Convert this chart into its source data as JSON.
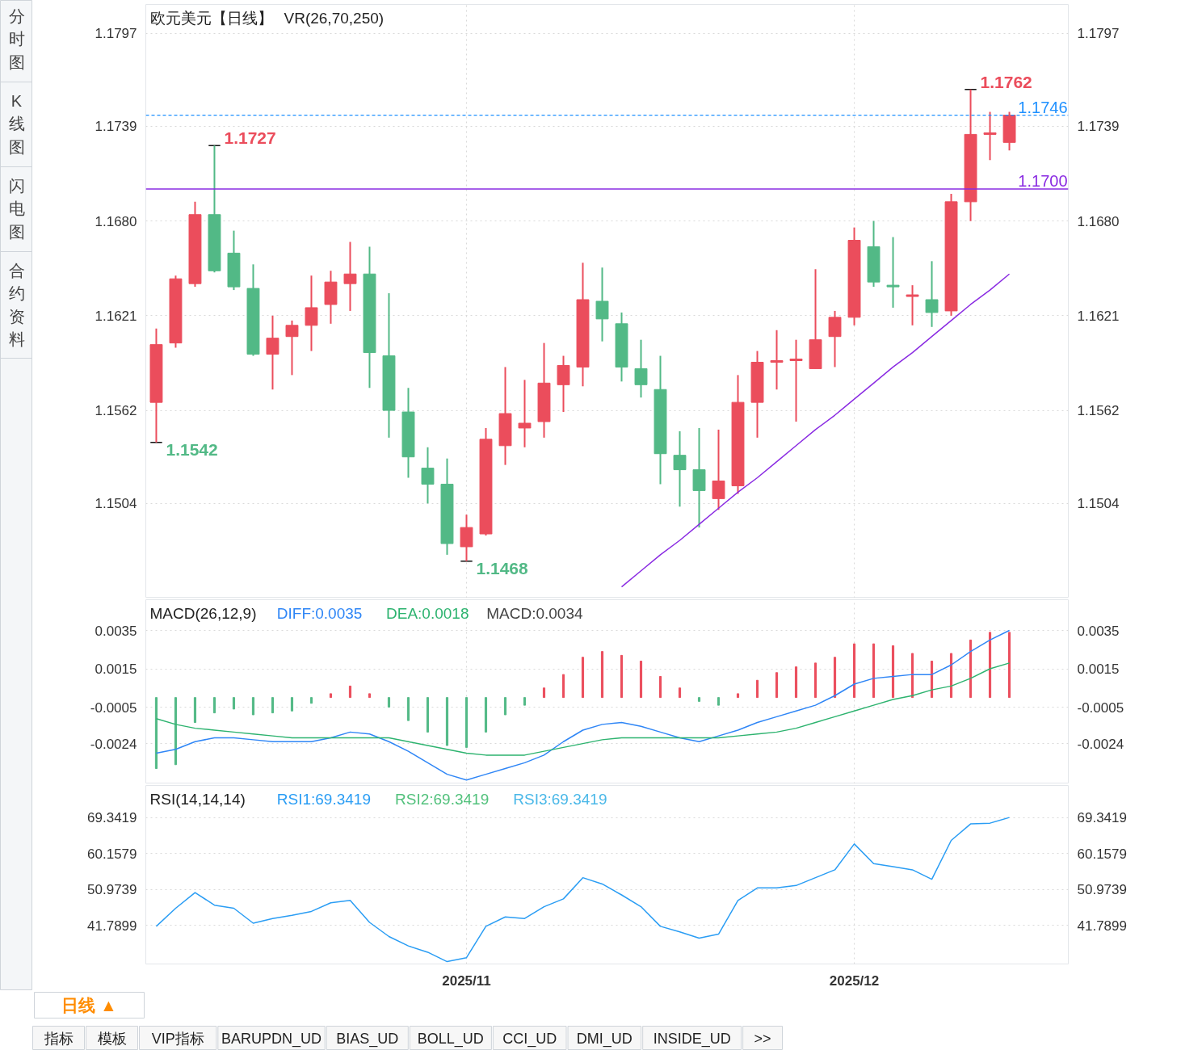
{
  "chart_data": [
    {
      "type": "candlestick",
      "title": "欧元美元【日线】",
      "subtitle": "VR(26,70,250)",
      "categories": [
        null,
        null,
        null,
        null,
        null,
        null,
        null,
        null,
        null,
        null,
        null,
        null,
        null,
        null,
        null,
        null,
        "2025/11",
        null,
        null,
        null,
        null,
        null,
        null,
        null,
        null,
        null,
        null,
        null,
        null,
        null,
        null,
        null,
        null,
        null,
        null,
        null,
        "2025/12",
        null,
        null,
        null,
        null,
        null,
        null,
        null,
        null
      ],
      "ohlc": [
        [
          1.1567,
          1.1613,
          1.1542,
          1.1603
        ],
        [
          1.1604,
          1.1646,
          1.1601,
          1.1644
        ],
        [
          1.1641,
          1.1692,
          1.1639,
          1.1684
        ],
        [
          1.1684,
          1.1727,
          1.1648,
          1.1649
        ],
        [
          1.166,
          1.1674,
          1.1637,
          1.1639
        ],
        [
          1.1638,
          1.1653,
          1.1596,
          1.1597
        ],
        [
          1.1597,
          1.1621,
          1.1575,
          1.1607
        ],
        [
          1.1608,
          1.1618,
          1.1584,
          1.1615
        ],
        [
          1.1615,
          1.1646,
          1.1599,
          1.1626
        ],
        [
          1.1628,
          1.1649,
          1.1616,
          1.1642
        ],
        [
          1.1641,
          1.1667,
          1.1624,
          1.1647
        ],
        [
          1.1647,
          1.1664,
          1.1576,
          1.1598
        ],
        [
          1.1596,
          1.1635,
          1.1545,
          1.1562
        ],
        [
          1.1561,
          1.1576,
          1.152,
          1.1533
        ],
        [
          1.1526,
          1.1539,
          1.1504,
          1.1516
        ],
        [
          1.1516,
          1.1532,
          1.1472,
          1.1479
        ],
        [
          1.1477,
          1.1497,
          1.1468,
          1.1489
        ],
        [
          1.1485,
          1.1551,
          1.1484,
          1.1544
        ],
        [
          1.154,
          1.1589,
          1.1528,
          1.156
        ],
        [
          1.1551,
          1.1581,
          1.1539,
          1.1554
        ],
        [
          1.1555,
          1.1604,
          1.1545,
          1.1579
        ],
        [
          1.1578,
          1.1596,
          1.1561,
          1.159
        ],
        [
          1.1589,
          1.1654,
          1.1577,
          1.1631
        ],
        [
          1.163,
          1.1651,
          1.1605,
          1.1619
        ],
        [
          1.1616,
          1.1623,
          1.158,
          1.1589
        ],
        [
          1.1588,
          1.1606,
          1.157,
          1.1578
        ],
        [
          1.1575,
          1.1596,
          1.1516,
          1.1535
        ],
        [
          1.1534,
          1.1549,
          1.1502,
          1.1525
        ],
        [
          1.1525,
          1.1551,
          1.1489,
          1.1512
        ],
        [
          1.1507,
          1.155,
          1.15,
          1.1518
        ],
        [
          1.1515,
          1.1584,
          1.151,
          1.1567
        ],
        [
          1.1567,
          1.1599,
          1.1545,
          1.1592
        ],
        [
          1.1592,
          1.1612,
          1.1575,
          1.1593
        ],
        [
          1.1593,
          1.1606,
          1.1555,
          1.1594
        ],
        [
          1.1588,
          1.165,
          1.1588,
          1.1606
        ],
        [
          1.1608,
          1.1624,
          1.1589,
          1.162
        ],
        [
          1.162,
          1.1676,
          1.1615,
          1.1668
        ],
        [
          1.1664,
          1.168,
          1.1639,
          1.1642
        ],
        [
          1.164,
          1.167,
          1.1626,
          1.1639
        ],
        [
          1.1633,
          1.164,
          1.1615,
          1.1634
        ],
        [
          1.1631,
          1.1655,
          1.1614,
          1.1623
        ],
        [
          1.1624,
          1.1697,
          1.1621,
          1.1692
        ],
        [
          1.1692,
          1.1762,
          1.168,
          1.1734
        ],
        [
          1.1734,
          1.1748,
          1.1718,
          1.1735
        ],
        [
          1.1729,
          1.1748,
          1.1724,
          1.1746
        ]
      ],
      "colors": [
        "#eb4d5c",
        "#eb4d5c",
        "#eb4d5c",
        "#52b986",
        "#52b986",
        "#52b986",
        "#eb4d5c",
        "#eb4d5c",
        "#eb4d5c",
        "#eb4d5c",
        "#eb4d5c",
        "#52b986",
        "#52b986",
        "#52b986",
        "#52b986",
        "#52b986",
        "#eb4d5c",
        "#eb4d5c",
        "#eb4d5c",
        "#eb4d5c",
        "#eb4d5c",
        "#eb4d5c",
        "#eb4d5c",
        "#52b986",
        "#52b986",
        "#52b986",
        "#52b986",
        "#52b986",
        "#52b986",
        "#eb4d5c",
        "#eb4d5c",
        "#eb4d5c",
        "#eb4d5c",
        "#eb4d5c",
        "#eb4d5c",
        "#eb4d5c",
        "#eb4d5c",
        "#52b986",
        "#52b986",
        "#eb4d5c",
        "#52b986",
        "#eb4d5c",
        "#eb4d5c",
        "#eb4d5c",
        "#eb4d5c"
      ],
      "series": [
        {
          "type": "line",
          "color": "#8a2be2",
          "values": [
            null,
            null,
            null,
            null,
            null,
            null,
            null,
            null,
            null,
            null,
            null,
            null,
            null,
            null,
            null,
            null,
            null,
            null,
            null,
            null,
            null,
            null,
            null,
            null,
            1.1452,
            1.1462,
            1.1472,
            1.1481,
            1.1491,
            1.1501,
            1.1511,
            1.152,
            1.153,
            1.154,
            1.155,
            1.1559,
            1.1569,
            1.1579,
            1.1589,
            1.1598,
            1.1608,
            1.1618,
            1.1628,
            1.1637,
            1.1647
          ]
        }
      ],
      "ylim": [
        1.1445,
        1.1815
      ],
      "yticks": [
        1.1797,
        1.1739,
        {
          "value": 1.168,
          "label": "1.1680"
        },
        1.1621,
        1.1562,
        1.1504
      ],
      "y2lim": [
        1.1445,
        1.1815
      ],
      "y2ticks": [
        1.1797,
        1.1739,
        {
          "value": 1.168,
          "label": "1.1680"
        },
        1.1621,
        1.1562,
        1.1504
      ],
      "ref_lines": [
        {
          "axis": "y",
          "value": 1.17,
          "label": "1.1700",
          "color": "#8a2be2",
          "line_style": "solid"
        },
        {
          "axis": "y",
          "value": 1.1746,
          "label": "1.1746",
          "color": "#1e90ff",
          "line_style": "dashed"
        }
      ],
      "annotations": [
        "1.1727",
        "1.1542",
        "1.1468",
        "1.1762"
      ],
      "grid": true,
      "tick_labels": "y"
    },
    {
      "type": "line",
      "title": "MACD(26,12,9)",
      "categories": [
        null,
        null,
        null,
        null,
        null,
        null,
        null,
        null,
        null,
        null,
        null,
        null,
        null,
        null,
        null,
        null,
        "2025/11",
        null,
        null,
        null,
        null,
        null,
        null,
        null,
        null,
        null,
        null,
        null,
        null,
        null,
        null,
        null,
        null,
        null,
        null,
        null,
        "2025/12",
        null,
        null,
        null,
        null,
        null,
        null,
        null,
        null
      ],
      "series": [
        {
          "name": "DIFF:0.0035",
          "color": "#2f86f6",
          "values": [
            -0.0029,
            -0.0027,
            -0.0023,
            -0.0021,
            -0.0021,
            -0.0022,
            -0.0023,
            -0.0023,
            -0.0023,
            -0.0021,
            -0.0018,
            -0.0019,
            -0.0023,
            -0.0028,
            -0.0034,
            -0.004,
            -0.0043,
            -0.004,
            -0.0037,
            -0.0034,
            -0.003,
            -0.0023,
            -0.0017,
            -0.0014,
            -0.0013,
            -0.0015,
            -0.0018,
            -0.0021,
            -0.0023,
            -0.002,
            -0.0017,
            -0.0013,
            -0.001,
            -0.0007,
            -0.0004,
            0.0001,
            0.0007,
            0.001,
            0.0011,
            0.0012,
            0.0012,
            0.0017,
            0.0024,
            0.003,
            0.0035
          ]
        },
        {
          "name": "DEA:0.0018",
          "color": "#2db36f",
          "values": [
            -0.0011,
            -0.0014,
            -0.0016,
            -0.0017,
            -0.0018,
            -0.0019,
            -0.002,
            -0.0021,
            -0.0021,
            -0.0021,
            -0.0021,
            -0.0021,
            -0.0021,
            -0.0023,
            -0.0025,
            -0.0027,
            -0.0029,
            -0.003,
            -0.003,
            -0.003,
            -0.0028,
            -0.0026,
            -0.0024,
            -0.0022,
            -0.0021,
            -0.0021,
            -0.0021,
            -0.0021,
            -0.0021,
            -0.0021,
            -0.002,
            -0.0019,
            -0.0018,
            -0.0016,
            -0.0013,
            -0.001,
            -0.0007,
            -0.0004,
            -0.0001,
            0.0001,
            0.0004,
            0.0006,
            0.001,
            0.0015,
            0.0018
          ]
        },
        {
          "name": "MACD:0.0034",
          "type": "bar",
          "values": [
            -0.0037,
            -0.0035,
            -0.0013,
            -0.0008,
            -0.0006,
            -0.0009,
            -0.0008,
            -0.0007,
            -0.0003,
            0.0002,
            0.0006,
            0.0002,
            -0.0005,
            -0.0012,
            -0.0018,
            -0.0025,
            -0.0026,
            -0.0018,
            -0.0009,
            -0.0004,
            0.0005,
            0.0012,
            0.0021,
            0.0024,
            0.0022,
            0.0019,
            0.0011,
            0.0005,
            -0.0002,
            -0.0004,
            0.0002,
            0.0009,
            0.0013,
            0.0016,
            0.0018,
            0.0021,
            0.0028,
            0.0028,
            0.0027,
            0.0023,
            0.0019,
            0.0023,
            0.003,
            0.0034,
            0.0034
          ],
          "colors": [
            "#52b986",
            "#52b986",
            "#52b986",
            "#52b986",
            "#52b986",
            "#52b986",
            "#52b986",
            "#52b986",
            "#52b986",
            "#eb4d5c",
            "#eb4d5c",
            "#eb4d5c",
            "#52b986",
            "#52b986",
            "#52b986",
            "#52b986",
            "#52b986",
            "#52b986",
            "#52b986",
            "#52b986",
            "#eb4d5c",
            "#eb4d5c",
            "#eb4d5c",
            "#eb4d5c",
            "#eb4d5c",
            "#eb4d5c",
            "#eb4d5c",
            "#eb4d5c",
            "#52b986",
            "#52b986",
            "#eb4d5c",
            "#eb4d5c",
            "#eb4d5c",
            "#eb4d5c",
            "#eb4d5c",
            "#eb4d5c",
            "#eb4d5c",
            "#eb4d5c",
            "#eb4d5c",
            "#eb4d5c",
            "#eb4d5c",
            "#eb4d5c",
            "#eb4d5c",
            "#eb4d5c",
            "#eb4d5c"
          ]
        }
      ],
      "ylim": [
        -0.0045,
        0.0051
      ],
      "yticks": [
        0.0035,
        0.0015,
        -0.0005,
        -0.0024
      ],
      "y2lim": [
        -0.0045,
        0.0051
      ],
      "y2ticks": [
        0.0035,
        0.0015,
        -0.0005,
        -0.0024
      ],
      "legend": "top left",
      "grid": true,
      "tick_labels": "y"
    },
    {
      "type": "line",
      "title": "RSI(14,14,14)",
      "categories": [
        null,
        null,
        null,
        null,
        null,
        null,
        null,
        null,
        null,
        null,
        null,
        null,
        null,
        null,
        null,
        null,
        "2025/11",
        null,
        null,
        null,
        null,
        null,
        null,
        null,
        null,
        null,
        null,
        null,
        null,
        null,
        null,
        null,
        null,
        null,
        null,
        null,
        "2025/12",
        null,
        null,
        null,
        null,
        null,
        null,
        null,
        null
      ],
      "series": [
        {
          "name": "RSI1:69.3419",
          "color": "#2a9df4",
          "values": [
            41.6,
            46.2,
            50.2,
            47.0,
            46.2,
            42.4,
            43.6,
            44.4,
            45.4,
            47.6,
            48.2,
            42.6,
            39.0,
            36.6,
            35.0,
            32.6,
            33.6,
            41.6,
            44.0,
            43.6,
            46.6,
            48.6,
            54.0,
            52.4,
            49.6,
            46.6,
            41.6,
            40.2,
            38.6,
            39.6,
            48.2,
            51.4,
            51.4,
            52.0,
            54.0,
            56.0,
            62.6,
            57.6,
            56.8,
            56.0,
            53.6,
            63.5,
            67.7,
            67.9,
            69.34
          ]
        },
        {
          "name": "RSI2:69.3419",
          "color": "#52c17c",
          "values": [
            null,
            null,
            null,
            null,
            null,
            null,
            null,
            null,
            null,
            null,
            null,
            null,
            null,
            null,
            null,
            null,
            null,
            null,
            null,
            null,
            null,
            null,
            null,
            null,
            null,
            null,
            null,
            null,
            null,
            null,
            null,
            null,
            null,
            null,
            null,
            null,
            null,
            null,
            null,
            null,
            null,
            null,
            null,
            null,
            null
          ]
        },
        {
          "name": "RSI3:69.3419",
          "color": "#4ab8e8",
          "values": [
            null,
            null,
            null,
            null,
            null,
            null,
            null,
            null,
            null,
            null,
            null,
            null,
            null,
            null,
            null,
            null,
            null,
            null,
            null,
            null,
            null,
            null,
            null,
            null,
            null,
            null,
            null,
            null,
            null,
            null,
            null,
            null,
            null,
            null,
            null,
            null,
            null,
            null,
            null,
            null,
            null,
            null,
            null,
            null,
            null
          ]
        }
      ],
      "ylim": [
        32,
        77.5
      ],
      "yticks": [
        69.3419,
        60.1579,
        50.9739,
        41.7899
      ],
      "y2lim": [
        32,
        77.5
      ],
      "y2ticks": [
        69.3419,
        60.1579,
        50.9739,
        41.7899
      ],
      "legend": "top left",
      "grid": true
    },
    {
      "type": "other",
      "annotations": [
        "分时图",
        "K线图",
        "闪电图",
        "合约资料"
      ]
    },
    {
      "type": "other",
      "annotations": [
        "日线 ▲",
        "指标",
        "模板",
        "VIP指标",
        "BARUPDN_UD",
        "BIAS_UD",
        "BOLL_UD",
        "CCI_UD",
        "DMI_UD",
        "INSIDE_UD",
        ">>"
      ]
    }
  ]
}
